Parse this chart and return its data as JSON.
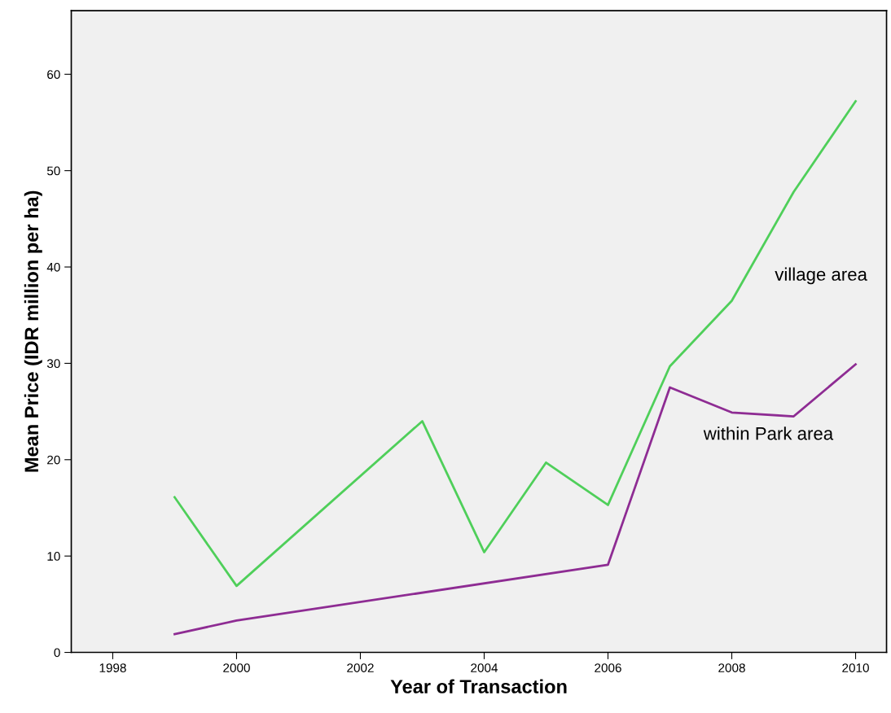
{
  "chart_data": {
    "type": "line",
    "xlabel": "Year of Transaction",
    "ylabel": "Mean Price (IDR million per ha)",
    "xlim": [
      1997.33,
      2010.5
    ],
    "xticks": [
      1998,
      2000,
      2002,
      2004,
      2006,
      2008,
      2010
    ],
    "ylim": [
      0,
      66.6
    ],
    "yticks": [
      0,
      10,
      20,
      30,
      40,
      50,
      60
    ],
    "grid": false,
    "legend": false,
    "marker": "none",
    "line_style": "solid",
    "series": [
      {
        "name": "village area",
        "color": "#4fcf5a",
        "x": [
          1999,
          2000,
          2003,
          2004,
          2005,
          2006,
          2007,
          2008,
          2009,
          2010
        ],
        "values": [
          16.1,
          6.9,
          24.0,
          10.4,
          19.7,
          15.3,
          29.7,
          36.5,
          47.8,
          57.2
        ]
      },
      {
        "name": "within Park area",
        "color": "#8e2c93",
        "x": [
          1999,
          2000,
          2006,
          2007,
          2008,
          2009,
          2010
        ],
        "values": [
          1.9,
          3.3,
          9.1,
          27.5,
          24.9,
          24.5,
          29.9
        ]
      }
    ]
  }
}
